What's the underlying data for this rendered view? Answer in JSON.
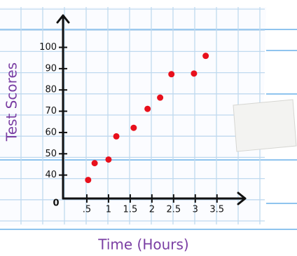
{
  "chart_data": {
    "type": "scatter",
    "x_label": "Time (Hours)",
    "y_label": "Test Scores",
    "origin_label": "0",
    "series": [
      {
        "color": "#e8101c",
        "x": [
          0.53,
          0.68,
          1.0,
          1.18,
          1.58,
          1.9,
          2.19,
          2.45,
          2.97,
          3.24
        ],
        "values": [
          37.7,
          45.6,
          47.3,
          58.2,
          62.2,
          71.1,
          76.4,
          87.4,
          87.7,
          96.0
        ]
      }
    ],
    "xlim": [
      0,
      4.15
    ],
    "ylim": [
      29,
      115
    ],
    "xticks": [
      {
        "value": 0.5,
        "label": ".5"
      },
      1,
      1.5,
      2,
      2.5,
      3,
      3.5
    ],
    "yticks": [
      40,
      50,
      60,
      70,
      80,
      90,
      100
    ]
  }
}
